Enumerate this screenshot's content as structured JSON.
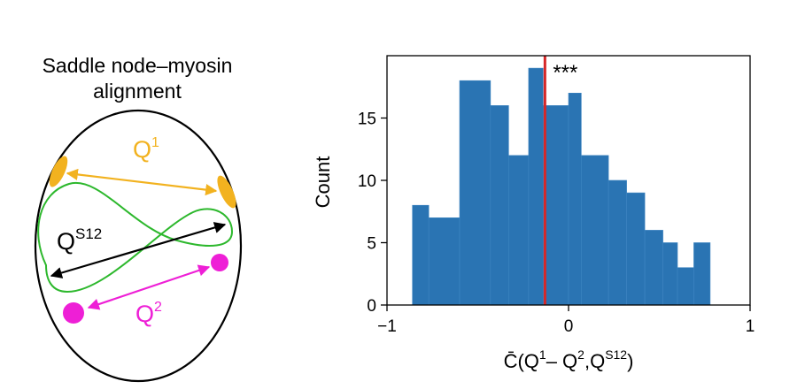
{
  "diagram": {
    "title_line1": "Saddle node–myosin",
    "title_line2": "alignment",
    "label_q1_base": "Q",
    "label_q1_sup": "1",
    "label_qs12_base": "Q",
    "label_qs12_sup": "S12",
    "label_q2_base": "Q",
    "label_q2_sup": "2",
    "colors": {
      "q1": "#f2b21f",
      "q2": "#ee1fd6",
      "qs12": "#000000",
      "contour": "#2db82d",
      "outline": "#000000"
    }
  },
  "chart_data": {
    "type": "bar",
    "subtype": "histogram",
    "ylabel": "Count",
    "xlabel_parts": {
      "func": "C̄(Q",
      "sup1": "1",
      "mid": "– Q",
      "sup2": "2",
      "sep": ",Q",
      "sup3": "S12",
      "close": ")"
    },
    "xlim": [
      -1,
      1
    ],
    "ylim": [
      0,
      20
    ],
    "xticks": [
      {
        "value": -1,
        "label": "−1"
      },
      {
        "value": 0,
        "label": "0"
      },
      {
        "value": 1,
        "label": "1"
      }
    ],
    "yticks": [
      {
        "value": 0,
        "label": "0"
      },
      {
        "value": 5,
        "label": "5"
      },
      {
        "value": 10,
        "label": "10"
      },
      {
        "value": 15,
        "label": "15"
      }
    ],
    "bins": [
      {
        "x0": -0.86,
        "x1": -0.77,
        "count": 8
      },
      {
        "x0": -0.77,
        "x1": -0.6,
        "count": 7
      },
      {
        "x0": -0.6,
        "x1": -0.43,
        "count": 18
      },
      {
        "x0": -0.43,
        "x1": -0.33,
        "count": 16
      },
      {
        "x0": -0.33,
        "x1": -0.22,
        "count": 12
      },
      {
        "x0": -0.22,
        "x1": -0.14,
        "count": 19
      },
      {
        "x0": -0.14,
        "x1": 0.0,
        "count": 16
      },
      {
        "x0": 0.0,
        "x1": 0.07,
        "count": 17
      },
      {
        "x0": 0.07,
        "x1": 0.22,
        "count": 12
      },
      {
        "x0": 0.22,
        "x1": 0.32,
        "count": 10
      },
      {
        "x0": 0.32,
        "x1": 0.42,
        "count": 9
      },
      {
        "x0": 0.42,
        "x1": 0.52,
        "count": 6
      },
      {
        "x0": 0.52,
        "x1": 0.6,
        "count": 5
      },
      {
        "x0": 0.6,
        "x1": 0.69,
        "count": 3
      },
      {
        "x0": 0.69,
        "x1": 0.78,
        "count": 5
      }
    ],
    "bar_color": "#2a74b3",
    "reference_line": {
      "x": -0.13,
      "color": "#d62728"
    },
    "significance": "***"
  }
}
